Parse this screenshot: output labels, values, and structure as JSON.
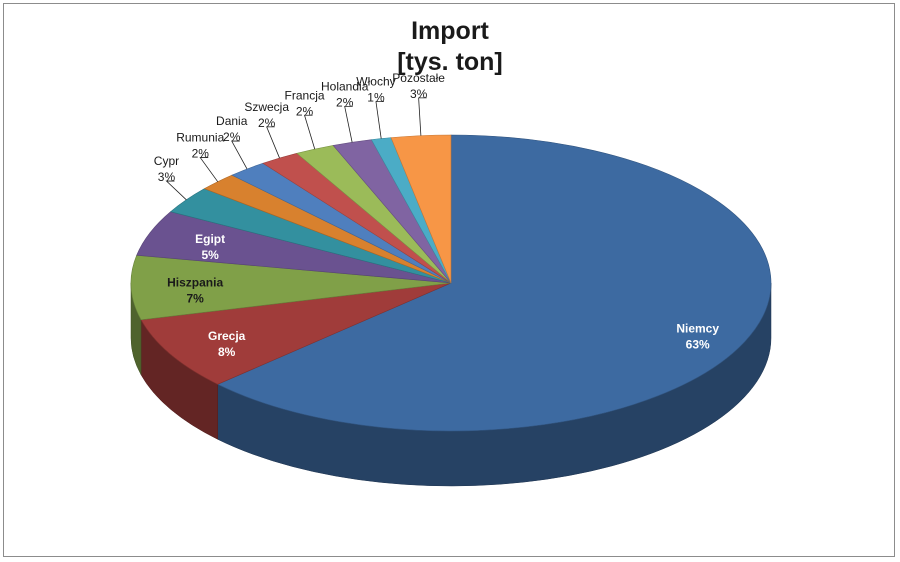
{
  "chart_data": {
    "type": "pie",
    "title_line1": "Import",
    "title_line2": "[tys. ton]",
    "slices": [
      {
        "name": "Niemcy",
        "label": "Niemcy",
        "pct_label": "63%",
        "value": 63,
        "color": "#3d6aa1"
      },
      {
        "name": "Grecja",
        "label": "Grecja",
        "pct_label": "8%",
        "value": 8,
        "color": "#a03c3a"
      },
      {
        "name": "Hiszpania",
        "label": "Hiszpania",
        "pct_label": "7%",
        "value": 7,
        "color": "#80a048"
      },
      {
        "name": "Egipt",
        "label": "Egipt",
        "pct_label": "5%",
        "value": 5,
        "color": "#6a5290"
      },
      {
        "name": "Cypr",
        "label": "Cypr",
        "pct_label": "3%",
        "value": 3,
        "color": "#33909f"
      },
      {
        "name": "Rumunia",
        "label": "Rumunia",
        "pct_label": "2%",
        "value": 2,
        "color": "#d8812e"
      },
      {
        "name": "Dania",
        "label": "Dania",
        "pct_label": "2%",
        "value": 2,
        "color": "#4f7fbe"
      },
      {
        "name": "Szwecja",
        "label": "Szwecja",
        "pct_label": "2%",
        "value": 2,
        "color": "#c0504d"
      },
      {
        "name": "Francja",
        "label": "Francja",
        "pct_label": "2%",
        "value": 2,
        "color": "#9bbb59"
      },
      {
        "name": "Holandia",
        "label": "Holandia",
        "pct_label": "2%",
        "value": 2,
        "color": "#8064a2"
      },
      {
        "name": "Włochy",
        "label": "Włochy",
        "pct_label": "1%",
        "value": 1,
        "color": "#4bacc6"
      },
      {
        "name": "Pozostałe",
        "label": "Pozostałe",
        "pct_label": "3%",
        "value": 3,
        "color": "#f79646"
      }
    ]
  }
}
